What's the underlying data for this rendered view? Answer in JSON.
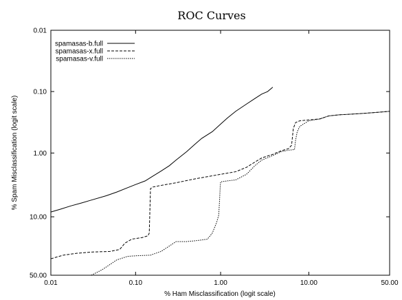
{
  "chart_data": {
    "type": "line",
    "title": "ROC Curves",
    "xlabel": "% Ham Misclassification (logit scale)",
    "ylabel": "% Spam Misclassification (logit scale)",
    "x_scale": "logit",
    "y_scale": "logit",
    "y_inverted": true,
    "xlim": [
      0.01,
      50
    ],
    "ylim": [
      0.01,
      50
    ],
    "xticks": [
      0.01,
      0.1,
      1,
      10,
      50
    ],
    "xtick_labels": [
      "0.01",
      "0.10",
      "1.00",
      "10.00",
      "50.00"
    ],
    "yticks": [
      0.01,
      0.1,
      1,
      10,
      50
    ],
    "ytick_labels": [
      "0.01",
      "0.10",
      "1.00",
      "10.00",
      "50.00"
    ],
    "grid": false,
    "legend_position": "top-left",
    "series": [
      {
        "name": "spamasas-b.full",
        "style": "solid",
        "points": [
          [
            0.01,
            8.5
          ],
          [
            0.013,
            7.7
          ],
          [
            0.017,
            6.9
          ],
          [
            0.023,
            6.2
          ],
          [
            0.03,
            5.6
          ],
          [
            0.045,
            4.8
          ],
          [
            0.06,
            4.2
          ],
          [
            0.08,
            3.6
          ],
          [
            0.1,
            3.2
          ],
          [
            0.13,
            2.8
          ],
          [
            0.16,
            2.35
          ],
          [
            0.2,
            1.95
          ],
          [
            0.25,
            1.6
          ],
          [
            0.3,
            1.3
          ],
          [
            0.4,
            0.95
          ],
          [
            0.5,
            0.72
          ],
          [
            0.6,
            0.58
          ],
          [
            0.8,
            0.45
          ],
          [
            1.0,
            0.34
          ],
          [
            1.2,
            0.27
          ],
          [
            1.5,
            0.21
          ],
          [
            2.0,
            0.16
          ],
          [
            2.5,
            0.13
          ],
          [
            3.0,
            0.11
          ],
          [
            3.5,
            0.1
          ],
          [
            4.0,
            0.085
          ]
        ]
      },
      {
        "name": "spamasas-x.full",
        "style": "dashed",
        "points": [
          [
            0.01,
            35
          ],
          [
            0.014,
            32
          ],
          [
            0.02,
            30.5
          ],
          [
            0.03,
            29.5
          ],
          [
            0.05,
            29
          ],
          [
            0.065,
            27.5
          ],
          [
            0.075,
            23
          ],
          [
            0.09,
            20.5
          ],
          [
            0.12,
            19.5
          ],
          [
            0.14,
            18.5
          ],
          [
            0.145,
            17
          ],
          [
            0.15,
            3.7
          ],
          [
            0.16,
            3.5
          ],
          [
            0.2,
            3.3
          ],
          [
            0.3,
            3.0
          ],
          [
            0.5,
            2.6
          ],
          [
            0.7,
            2.4
          ],
          [
            1.0,
            2.2
          ],
          [
            1.5,
            2.0
          ],
          [
            2.0,
            1.7
          ],
          [
            2.5,
            1.4
          ],
          [
            3.0,
            1.2
          ],
          [
            4.0,
            1.05
          ],
          [
            5.0,
            0.92
          ],
          [
            6.0,
            0.85
          ],
          [
            6.5,
            0.75
          ],
          [
            6.8,
            0.4
          ],
          [
            7.2,
            0.32
          ],
          [
            8.0,
            0.3
          ],
          [
            10.0,
            0.29
          ],
          [
            13.0,
            0.28
          ],
          [
            16.0,
            0.25
          ],
          [
            20.0,
            0.24
          ],
          [
            30.0,
            0.23
          ],
          [
            40.0,
            0.22
          ],
          [
            50.0,
            0.21
          ]
        ]
      },
      {
        "name": "spamasas-v.full",
        "style": "dotted",
        "points": [
          [
            0.03,
            50
          ],
          [
            0.04,
            45
          ],
          [
            0.05,
            40
          ],
          [
            0.06,
            36
          ],
          [
            0.08,
            33
          ],
          [
            0.1,
            32.5
          ],
          [
            0.15,
            32
          ],
          [
            0.2,
            29
          ],
          [
            0.25,
            25
          ],
          [
            0.3,
            22
          ],
          [
            0.4,
            22
          ],
          [
            0.5,
            21.5
          ],
          [
            0.6,
            21
          ],
          [
            0.7,
            20.5
          ],
          [
            0.8,
            17
          ],
          [
            0.9,
            12
          ],
          [
            0.95,
            9.5
          ],
          [
            0.97,
            6.0
          ],
          [
            0.99,
            3.4
          ],
          [
            1.0,
            2.9
          ],
          [
            1.2,
            2.8
          ],
          [
            1.5,
            2.7
          ],
          [
            2.0,
            2.2
          ],
          [
            2.5,
            1.6
          ],
          [
            3.0,
            1.3
          ],
          [
            4.0,
            1.1
          ],
          [
            5.0,
            0.95
          ],
          [
            6.0,
            0.9
          ],
          [
            7.0,
            0.88
          ],
          [
            7.2,
            0.62
          ],
          [
            7.5,
            0.45
          ],
          [
            8.0,
            0.37
          ],
          [
            9.0,
            0.33
          ],
          [
            10.0,
            0.3
          ],
          [
            13.0,
            0.28
          ],
          [
            16.0,
            0.25
          ],
          [
            20.0,
            0.24
          ],
          [
            30.0,
            0.23
          ],
          [
            40.0,
            0.22
          ],
          [
            50.0,
            0.21
          ]
        ]
      }
    ]
  }
}
